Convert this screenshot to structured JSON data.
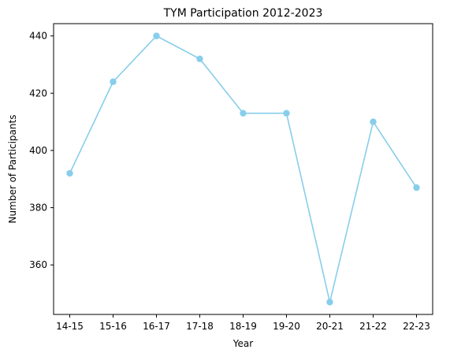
{
  "chart_data": {
    "type": "line",
    "title": "TYM Participation 2012-2023",
    "xlabel": "Year",
    "ylabel": "Number of Participants",
    "categories": [
      "14-15",
      "15-16",
      "16-17",
      "17-18",
      "18-19",
      "19-20",
      "20-21",
      "21-22",
      "22-23"
    ],
    "series": [
      {
        "values": [
          392,
          424,
          440,
          432,
          413,
          413,
          347,
          410,
          387
        ],
        "color": "#87ceeb"
      }
    ],
    "ylim": [
      342.7,
      444.3
    ],
    "yticks": [
      360,
      380,
      400,
      420,
      440
    ],
    "grid": false,
    "legend": "none"
  }
}
